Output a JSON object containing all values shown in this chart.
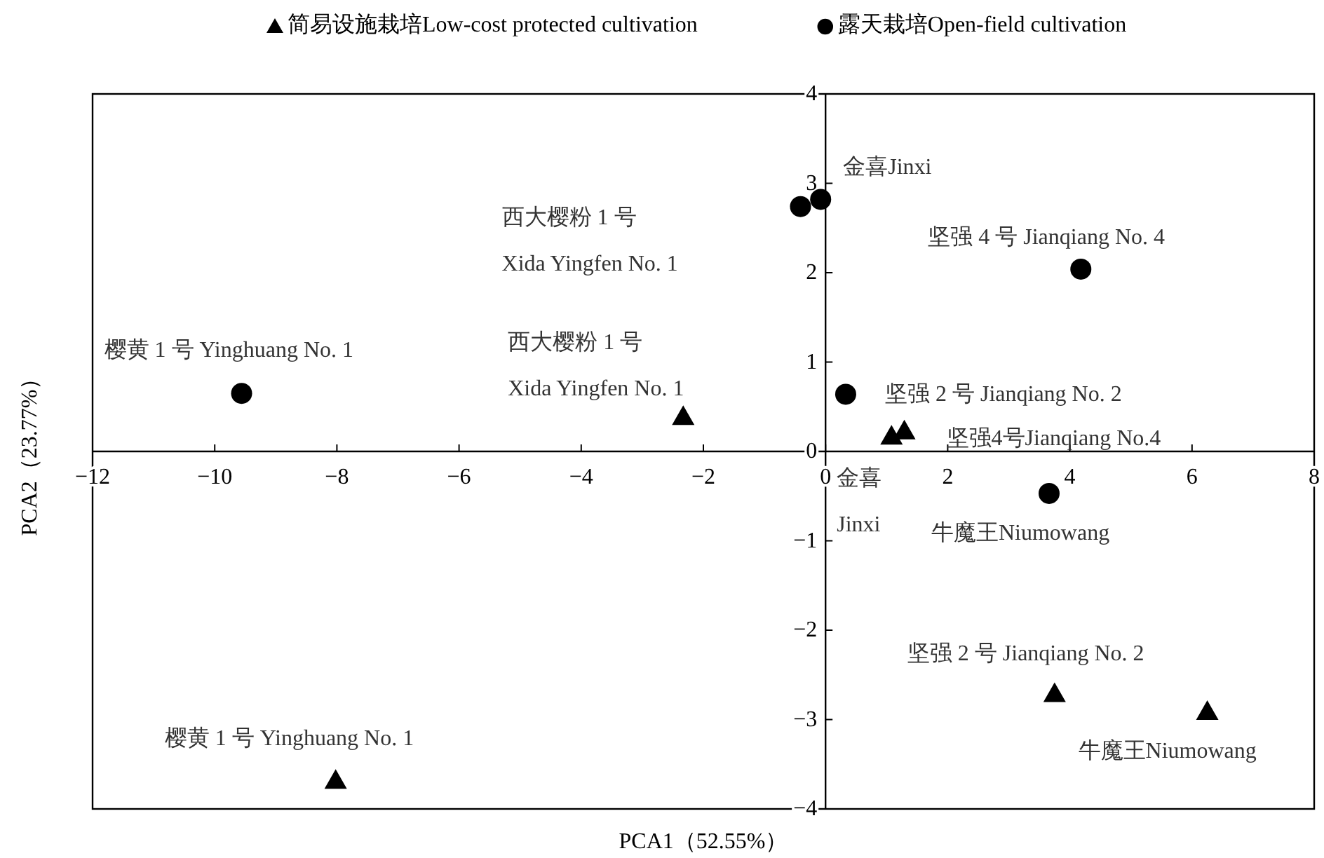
{
  "chart_data": {
    "type": "scatter",
    "xlabel": "PCA1（52.55%）",
    "ylabel": "PCA2（23.77%）",
    "xlim": [
      -12,
      8
    ],
    "xticks": [
      -12,
      -10,
      -8,
      -6,
      -4,
      -2,
      0,
      2,
      4,
      6,
      8
    ],
    "ylim": [
      -4,
      4
    ],
    "yticks": [
      -4,
      -3,
      -2,
      -1,
      0,
      1,
      2,
      3,
      4
    ],
    "grid": false,
    "legend": "top",
    "series": [
      {
        "name": "简易设施栽培Low-cost protected cultivation",
        "color": "#000000",
        "marker": "triangle",
        "x": [
          -8.02,
          -2.33,
          1.08,
          1.29,
          3.75,
          6.25
        ],
        "values": [
          -3.68,
          0.39,
          0.17,
          0.23,
          -2.71,
          -2.91
        ]
      },
      {
        "name": "露天栽培Open-field cultivation",
        "color": "#000000",
        "marker": "circle",
        "x": [
          -9.56,
          -0.41,
          -0.08,
          4.18,
          0.33,
          3.66
        ],
        "values": [
          0.65,
          2.74,
          2.82,
          2.04,
          0.64,
          -0.47
        ]
      }
    ],
    "annotations": [
      {
        "text": "樱黄 1 号 Yinghuang No. 1",
        "x": -8.02,
        "y": -3.68
      },
      {
        "text": "西大樱粉 1 号\nXida Yingfen No. 1",
        "x": -2.33,
        "y": 0.39
      },
      {
        "text": "金喜\nJinxi",
        "x": 1.08,
        "y": 0.17
      },
      {
        "text": "坚强4号Jianqiang No.4",
        "x": 1.29,
        "y": 0.23
      },
      {
        "text": "坚强 2 号 Jianqiang No. 2",
        "x": 3.75,
        "y": -2.71
      },
      {
        "text": "牛魔王Niumowang",
        "x": 6.25,
        "y": -2.91
      },
      {
        "text": "樱黄 1 号 Yinghuang No. 1",
        "x": -9.56,
        "y": 0.65
      },
      "西大樱粉 1 号\nXida Yingfen No. 1",
      {
        "text": "金喜Jinxi",
        "x": -0.08,
        "y": 2.82
      },
      {
        "text": "坚强 4 号 Jianqiang No. 4",
        "x": 4.18,
        "y": 2.04
      },
      {
        "text": "坚强 2 号 Jianqiang No. 2",
        "x": 0.33,
        "y": 0.64
      },
      {
        "text": "牛魔王Niumowang",
        "x": 3.66,
        "y": -0.47
      }
    ]
  }
}
